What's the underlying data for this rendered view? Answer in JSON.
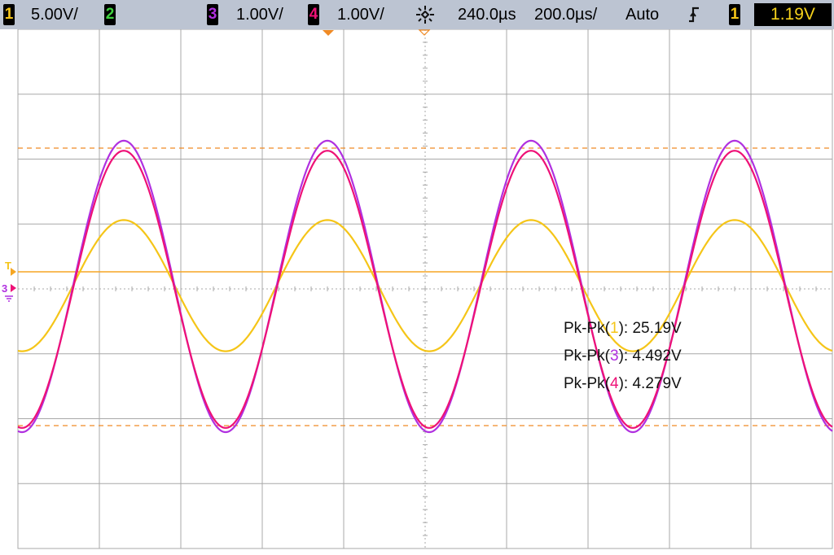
{
  "status_bar": {
    "ch1": {
      "number": "1",
      "scale": "5.00V/",
      "color": "#f5c518"
    },
    "ch2": {
      "number": "2",
      "color": "#3fd13f"
    },
    "ch3": {
      "number": "3",
      "scale": "1.00V/",
      "color": "#b030e0"
    },
    "ch4": {
      "number": "4",
      "scale": "1.00V/",
      "color": "#ee1177"
    },
    "time_delay": "240.0µs",
    "time_scale": "200.0µs/",
    "trigger_mode": "Auto",
    "trigger_slope_icon": "rising-edge-icon",
    "trigger_source": "1",
    "trigger_level": "1.19V"
  },
  "display": {
    "background": "#ffffff",
    "grid_color": "#a8a8a8",
    "trigger_level_color": "#f5a623",
    "cursor_color": "#f08a24"
  },
  "markers": {
    "trigger": "T",
    "ground": "3"
  },
  "measurements": [
    {
      "prefix": "Pk-Pk(",
      "channel": "1",
      "suffix": "): ",
      "value": "25.19V",
      "color": "#f5c518"
    },
    {
      "prefix": "Pk-Pk(",
      "channel": "3",
      "suffix": "): ",
      "value": "4.492V",
      "color": "#b030e0"
    },
    {
      "prefix": "Pk-Pk(",
      "channel": "4",
      "suffix": "): ",
      "value": "4.279V",
      "color": "#ee1177"
    }
  ],
  "chart_data": {
    "type": "line",
    "xlabel": "",
    "ylabel": "",
    "xlim": [
      -1.76,
      2.24
    ],
    "x_unit": "ms",
    "grid": true,
    "series": [
      {
        "channel": "1",
        "color": "#f5c518",
        "amplitude_v": 12.6,
        "period_ms": 1.0,
        "phase_zero_ms": -0.24
      },
      {
        "channel": "3",
        "color": "#b030e0",
        "amplitude_v": 2.25,
        "period_ms": 1.0,
        "phase_zero_ms": -0.24
      },
      {
        "channel": "4",
        "color": "#ee1177",
        "amplitude_v": 2.14,
        "period_ms": 1.0,
        "phase_zero_ms": -0.24
      }
    ]
  }
}
